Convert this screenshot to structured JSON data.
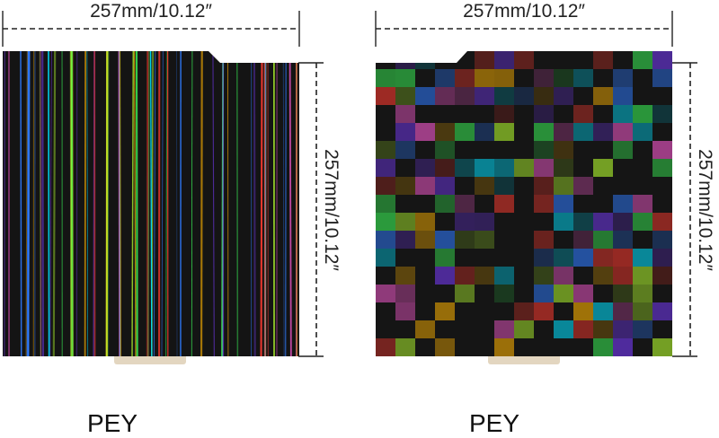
{
  "panels": [
    {
      "width_label": "257mm/10.12″",
      "height_label": "257mm/10.12″",
      "caption": "PEY"
    },
    {
      "width_label": "257mm/10.12″",
      "height_label": "257mm/10.12″",
      "caption": "PEY"
    }
  ]
}
